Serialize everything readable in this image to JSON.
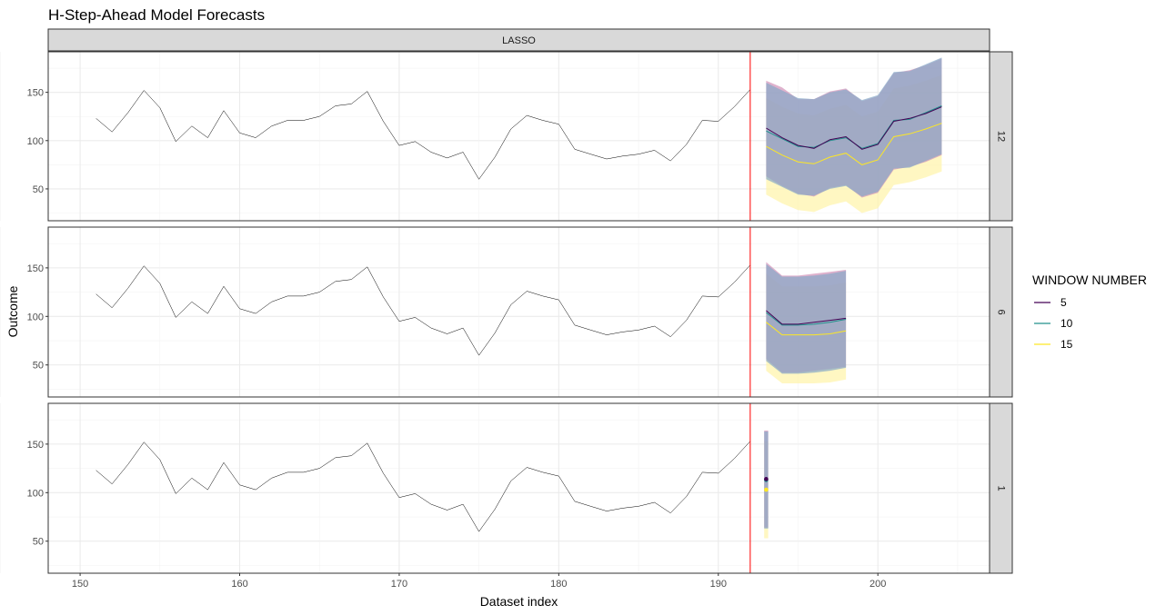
{
  "chart_data": {
    "type": "line",
    "title": "H-Step-Ahead Model Forecasts",
    "xlabel": "Dataset index",
    "ylabel": "Outcome",
    "column_strip": "LASSO",
    "xlim": [
      148,
      207
    ],
    "ylim": [
      17,
      192
    ],
    "x_ticks": [
      150,
      160,
      170,
      180,
      190,
      200
    ],
    "y_ticks": [
      50,
      100,
      150
    ],
    "vline_x": 192,
    "vline_color": "#ff0000",
    "legend": {
      "title": "WINDOW NUMBER",
      "entries": [
        {
          "label": "5",
          "color": "#440154"
        },
        {
          "label": "10",
          "color": "#21908c"
        },
        {
          "label": "15",
          "color": "#fde725"
        }
      ]
    },
    "actual": {
      "x": [
        151,
        152,
        153,
        154,
        155,
        156,
        157,
        158,
        159,
        160,
        161,
        162,
        163,
        164,
        165,
        166,
        167,
        168,
        169,
        170,
        171,
        172,
        173,
        174,
        175,
        176,
        177,
        178,
        179,
        180,
        181,
        182,
        183,
        184,
        185,
        186,
        187,
        188,
        189,
        190,
        191,
        192
      ],
      "y": [
        123,
        109,
        129,
        152,
        134,
        99,
        115,
        103,
        131,
        108,
        103,
        115,
        121,
        121,
        125,
        136,
        138,
        151,
        120,
        95,
        99,
        88,
        82,
        88,
        60,
        83,
        112,
        126,
        121,
        117,
        91,
        86,
        81,
        84,
        86,
        90,
        79,
        96,
        121,
        120,
        135,
        153
      ]
    },
    "panels": [
      {
        "strip": "12",
        "x": [
          193,
          194,
          195,
          196,
          197,
          198,
          199,
          200,
          201,
          202,
          203,
          204
        ],
        "series": [
          {
            "name": "5",
            "mean": [
              113,
              103,
              95,
              92,
              101,
              104,
              91,
              96,
              120,
              123,
              128,
              135
            ],
            "upper": [
              162,
              155,
              143,
              143,
              151,
              154,
              141,
              146,
              170,
              173,
              178,
              185
            ],
            "lower": [
              63,
              53,
              45,
              42,
              51,
              54,
              41,
              46,
              70,
              73,
              78,
              85
            ]
          },
          {
            "name": "10",
            "mean": [
              110,
              102,
              94,
              93,
              100,
              103,
              92,
              97,
              121,
              122,
              129,
              136
            ],
            "upper": [
              160,
              152,
              144,
              143,
              150,
              153,
              142,
              147,
              171,
              172,
              179,
              186
            ],
            "lower": [
              60,
              52,
              44,
              43,
              50,
              53,
              42,
              47,
              71,
              72,
              79,
              86
            ]
          },
          {
            "name": "15",
            "mean": [
              94,
              85,
              78,
              76,
              83,
              87,
              75,
              80,
              104,
              107,
              112,
              118
            ],
            "upper": [
              144,
              135,
              128,
              126,
              133,
              137,
              125,
              130,
              154,
              157,
              162,
              168
            ],
            "lower": [
              44,
              35,
              28,
              26,
              33,
              37,
              25,
              30,
              54,
              57,
              62,
              68
            ]
          }
        ]
      },
      {
        "strip": "6",
        "x": [
          193,
          194,
          195,
          196,
          197,
          198
        ],
        "series": [
          {
            "name": "5",
            "mean": [
              106,
              92,
              92,
              94,
              96,
              98
            ],
            "upper": [
              156,
              142,
              142,
              144,
              146,
              148
            ],
            "lower": [
              56,
              42,
              42,
              44,
              46,
              48
            ]
          },
          {
            "name": "10",
            "mean": [
              104,
              91,
              91,
              92,
              94,
              97
            ],
            "upper": [
              154,
              141,
              141,
              142,
              144,
              147
            ],
            "lower": [
              54,
              41,
              41,
              42,
              44,
              47
            ]
          },
          {
            "name": "15",
            "mean": [
              94,
              81,
              81,
              81,
              82,
              85
            ],
            "upper": [
              144,
              131,
              131,
              131,
              132,
              135
            ],
            "lower": [
              44,
              31,
              31,
              31,
              32,
              35
            ]
          }
        ]
      },
      {
        "strip": "1",
        "x": [
          193
        ],
        "series": [
          {
            "name": "5",
            "mean": [
              114
            ],
            "upper": [
              164
            ],
            "lower": [
              64
            ]
          },
          {
            "name": "10",
            "mean": [
              113
            ],
            "upper": [
              163
            ],
            "lower": [
              63
            ]
          },
          {
            "name": "15",
            "mean": [
              103
            ],
            "upper": [
              153
            ],
            "lower": [
              53
            ]
          }
        ]
      }
    ]
  }
}
